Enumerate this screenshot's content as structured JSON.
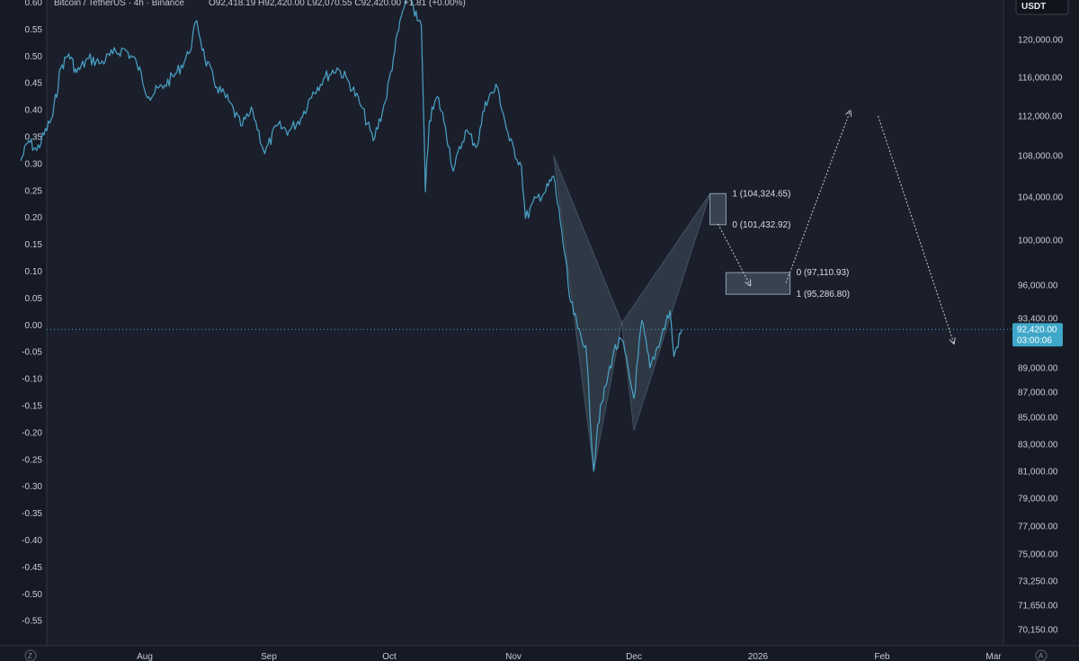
{
  "header": {
    "symbol": "Bitcoin / TetherUS · 4h · Binance",
    "ohlc": "O92,418.19 H92,420.00 L92,070.55 C92,420.00 +1.81 (+0.00%)"
  },
  "currency_button": "USDT",
  "last_price": {
    "label": "92,420.00",
    "countdown": "03:00:06"
  },
  "corner_icons": {
    "left": "Z",
    "right": "A"
  },
  "colors": {
    "background": "#161a25",
    "price_line": "#4aa3c7",
    "pattern_fill": "#5a6f80",
    "zone_fill": "#3c4a57",
    "arrow": "#c8ccd3",
    "price_tag": "#3fa7c9"
  },
  "chart_data": {
    "type": "line",
    "title": "Bitcoin / TetherUS · 4h · Binance",
    "left_axis": {
      "labels": [
        "0.60",
        "0.55",
        "0.50",
        "0.45",
        "0.40",
        "0.35",
        "0.30",
        "0.25",
        "0.20",
        "0.15",
        "0.10",
        "0.05",
        "0.00",
        "-0.05",
        "-0.10",
        "-0.15",
        "-0.20",
        "-0.25",
        "-0.30",
        "-0.35",
        "-0.40",
        "-0.45",
        "-0.50",
        "-0.55"
      ]
    },
    "right_axis": {
      "unit": "USDT",
      "ticks": [
        120000,
        116000,
        112000,
        108000,
        104000,
        100000,
        96000,
        93400,
        89000,
        87000,
        85000,
        83000,
        81000,
        79000,
        77000,
        75000,
        73250,
        71650,
        70150
      ],
      "labels": [
        "120,000.00",
        "116,000.00",
        "112,000.00",
        "108,000.00",
        "104,000.00",
        "100,000.00",
        "96,000.00",
        "93,400.00",
        "89,000.00",
        "87,000.00",
        "85,000.00",
        "83,000.00",
        "81,000.00",
        "79,000.00",
        "77,000.00",
        "75,000.00",
        "73,250.00",
        "71,650.00",
        "70,150.00"
      ]
    },
    "x_axis": {
      "labels": [
        "Aug",
        "Sep",
        "Oct",
        "Nov",
        "Dec",
        "2026",
        "Feb",
        "Mar"
      ],
      "dates": [
        "2025-08-01",
        "2025-09-01",
        "2025-10-01",
        "2025-11-01",
        "2025-12-01",
        "2026-01-01",
        "2026-02-01",
        "2026-03-01"
      ]
    },
    "series": [
      {
        "values": [
          [
            "2025-07-01",
            107500
          ],
          [
            "2025-07-03",
            109500
          ],
          [
            "2025-07-05",
            108500
          ],
          [
            "2025-07-09",
            112000
          ],
          [
            "2025-07-11",
            117000
          ],
          [
            "2025-07-13",
            118500
          ],
          [
            "2025-07-15",
            116500
          ],
          [
            "2025-07-18",
            118000
          ],
          [
            "2025-07-21",
            117500
          ],
          [
            "2025-07-24",
            118500
          ],
          [
            "2025-07-27",
            119000
          ],
          [
            "2025-07-30",
            117500
          ],
          [
            "2025-08-02",
            114000
          ],
          [
            "2025-08-06",
            115200
          ],
          [
            "2025-08-09",
            116500
          ],
          [
            "2025-08-12",
            118500
          ],
          [
            "2025-08-14",
            122000
          ],
          [
            "2025-08-16",
            118000
          ],
          [
            "2025-08-19",
            115000
          ],
          [
            "2025-08-22",
            113500
          ],
          [
            "2025-08-25",
            111000
          ],
          [
            "2025-08-28",
            112500
          ],
          [
            "2025-08-31",
            108200
          ],
          [
            "2025-09-03",
            111000
          ],
          [
            "2025-09-06",
            110500
          ],
          [
            "2025-09-09",
            111800
          ],
          [
            "2025-09-12",
            114500
          ],
          [
            "2025-09-15",
            116000
          ],
          [
            "2025-09-18",
            117000
          ],
          [
            "2025-09-21",
            115500
          ],
          [
            "2025-09-24",
            113000
          ],
          [
            "2025-09-27",
            109500
          ],
          [
            "2025-09-30",
            113500
          ],
          [
            "2025-10-02",
            118000
          ],
          [
            "2025-10-04",
            122500
          ],
          [
            "2025-10-06",
            125000
          ],
          [
            "2025-10-08",
            122000
          ],
          [
            "2025-10-09",
            121500
          ],
          [
            "2025-10-10",
            104500
          ],
          [
            "2025-10-11",
            111500
          ],
          [
            "2025-10-13",
            114000
          ],
          [
            "2025-10-15",
            111000
          ],
          [
            "2025-10-17",
            106500
          ],
          [
            "2025-10-20",
            110500
          ],
          [
            "2025-10-23",
            109000
          ],
          [
            "2025-10-25",
            113500
          ],
          [
            "2025-10-28",
            115000
          ],
          [
            "2025-10-31",
            109500
          ],
          [
            "2025-11-03",
            107000
          ],
          [
            "2025-11-04",
            102000
          ],
          [
            "2025-11-07",
            104000
          ],
          [
            "2025-11-09",
            104500
          ],
          [
            "2025-11-11",
            106000
          ],
          [
            "2025-11-13",
            101000
          ],
          [
            "2025-11-15",
            95000
          ],
          [
            "2025-11-17",
            92500
          ],
          [
            "2025-11-19",
            91000
          ],
          [
            "2025-11-21",
            81000
          ],
          [
            "2025-11-22",
            84500
          ],
          [
            "2025-11-24",
            87500
          ],
          [
            "2025-11-26",
            90500
          ],
          [
            "2025-11-28",
            91500
          ],
          [
            "2025-12-01",
            86500
          ],
          [
            "2025-12-03",
            93200
          ],
          [
            "2025-12-05",
            89000
          ],
          [
            "2025-12-08",
            92000
          ],
          [
            "2025-12-10",
            94000
          ],
          [
            "2025-12-11",
            90000
          ],
          [
            "2025-12-13",
            92420
          ]
        ]
      }
    ],
    "harmonic_pattern": {
      "points": [
        [
          "2025-11-11",
          108000
        ],
        [
          "2025-11-21",
          81000
        ],
        [
          "2025-11-28",
          93000
        ],
        [
          "2025-12-01",
          84000
        ],
        [
          "2025-12-20",
          104300
        ]
      ]
    },
    "zones": [
      {
        "date_start": "2025-12-20",
        "date_end": "2025-12-24",
        "high": 104324.65,
        "low": 101432.92,
        "label_high": "1 (104,324.65)",
        "label_low": "0 (101,432.92)"
      },
      {
        "date_start": "2025-12-24",
        "date_end": "2026-01-09",
        "high": 97110.93,
        "low": 95286.8,
        "label_high": "0 (97,110.93)",
        "label_low": "1 (95,286.80)"
      }
    ],
    "projection_arrows": [
      {
        "from": [
          "2025-12-22",
          101500
        ],
        "to": [
          "2025-12-30",
          96000
        ]
      },
      {
        "from": [
          "2026-01-08",
          96200
        ],
        "to": [
          "2026-01-24",
          112500
        ]
      },
      {
        "from": [
          "2026-01-31",
          112000
        ],
        "to": [
          "2026-02-19",
          91200
        ]
      }
    ],
    "last_price_level": 92420,
    "grid": false,
    "legend": "none"
  }
}
